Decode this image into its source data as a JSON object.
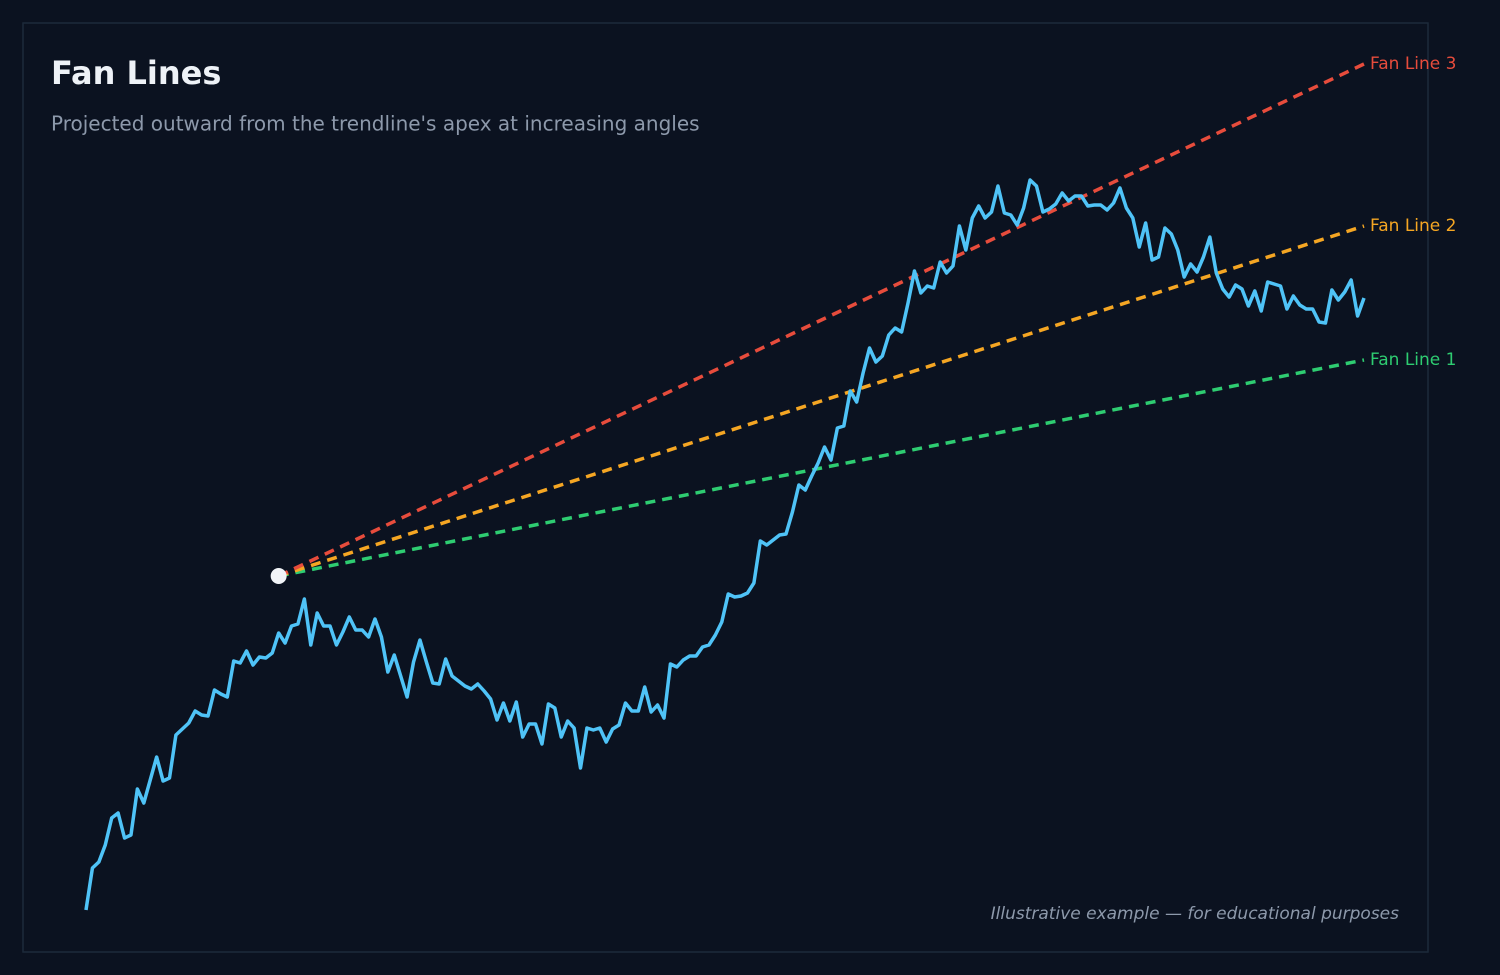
{
  "chart_data": {
    "type": "line",
    "title": "Fan Lines",
    "subtitle": "Projected outward from the trendline's apex at increasing angles",
    "footnote": "Illustrative example — for educational purposes",
    "ylim": [
      0,
      900
    ],
    "series": [
      {
        "color": "#4fc3f7",
        "values": [
          25,
          67,
          73,
          90,
          117,
          122,
          97,
          100,
          146,
          132,
          155,
          178,
          154,
          157,
          200,
          206,
          212,
          224,
          220,
          219,
          245,
          241,
          238,
          274,
          272,
          284,
          270,
          278,
          277,
          282,
          302,
          292,
          309,
          311,
          336,
          290,
          322,
          309,
          309,
          290,
          303,
          318,
          305,
          305,
          298,
          316,
          298,
          263,
          280,
          259,
          238,
          273,
          295,
          273,
          252,
          251,
          276,
          259,
          254,
          249,
          246,
          251,
          244,
          236,
          215,
          232,
          214,
          233,
          198,
          211,
          211,
          191,
          231,
          227,
          198,
          214,
          207,
          167,
          207,
          205,
          207,
          193,
          206,
          210,
          232,
          224,
          224,
          248,
          223,
          230,
          217,
          271,
          268,
          275,
          279,
          279,
          288,
          290,
          300,
          313,
          341,
          338,
          339,
          342,
          352,
          394,
          390,
          395,
          400,
          401,
          423,
          450,
          445,
          459,
          472,
          488,
          475,
          507,
          509,
          544,
          533,
          562,
          587,
          573,
          579,
          600,
          607,
          603,
          632,
          664,
          642,
          649,
          647,
          673,
          662,
          669,
          709,
          685,
          717,
          729,
          717,
          723,
          749,
          722,
          720,
          710,
          727,
          755,
          749,
          723,
          726,
          731,
          742,
          734,
          739,
          739,
          729,
          730,
          730,
          725,
          732,
          747,
          727,
          717,
          688,
          712,
          675,
          678,
          707,
          701,
          685,
          658,
          671,
          663,
          678,
          698,
          662,
          646,
          638,
          650,
          646,
          629,
          644,
          624,
          653,
          651,
          649,
          626,
          639,
          630,
          626,
          626,
          613,
          612,
          645,
          635,
          643,
          655,
          619,
          637
        ]
      }
    ],
    "apex": {
      "x": 30,
      "value": 359
    },
    "fan_lines": [
      {
        "name": "Fan Line 1",
        "color": "#2ecc71",
        "end": 575
      },
      {
        "name": "Fan Line 2",
        "color": "#f5a623",
        "end": 709
      },
      {
        "name": "Fan Line 3",
        "color": "#e74c3c",
        "end": 871
      }
    ]
  }
}
